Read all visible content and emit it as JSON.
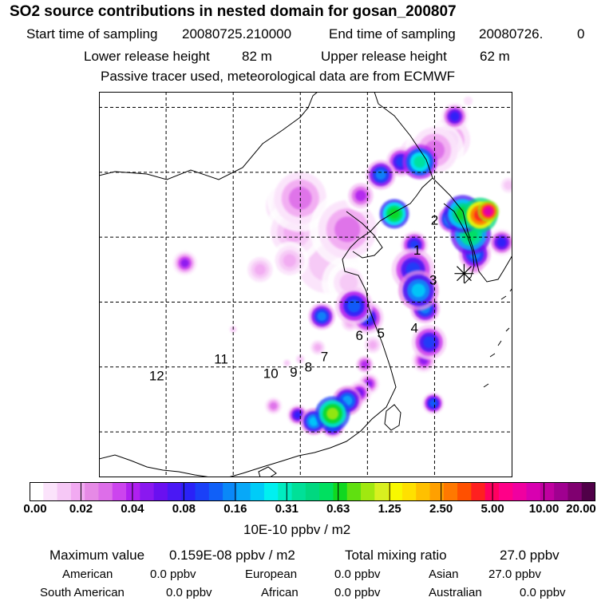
{
  "chart_data": {
    "type": "heatmap",
    "title": "SO2 source contributions in nested domain for gosan_200807",
    "sampling": {
      "start_label": "Start time of sampling",
      "start_value": "20080725.210000",
      "end_label": "End time of sampling",
      "end_value": "20080726.",
      "end_suffix": "0"
    },
    "release": {
      "lower_label": "Lower release height",
      "lower_value": "82 m",
      "upper_label": "Upper release height",
      "upper_value": "62 m"
    },
    "note": "Passive tracer used, meteorological data are from ECMWF",
    "colorbar": {
      "ticks": [
        "0.00",
        "0.02",
        "0.04",
        "0.08",
        "0.16",
        "0.31",
        "0.63",
        "1.25",
        "2.50",
        "5.00",
        "10.00",
        "20.00"
      ],
      "colors": [
        "#ffffff",
        "#fbe3fb",
        "#f6c8f6",
        "#f2aaf2",
        "#e68ae6",
        "#dd6ee9",
        "#cc44ee",
        "#b020f0",
        "#8a18f0",
        "#6a10f0",
        "#4a18f4",
        "#2a22f8",
        "#1a40f8",
        "#1060f8",
        "#0a88f8",
        "#08a8f8",
        "#00ccf8",
        "#00f0f0",
        "#00ecc0",
        "#00e098",
        "#00d880",
        "#00e060",
        "#10d820",
        "#60e010",
        "#a0e810",
        "#d8f020",
        "#f8f800",
        "#ffe000",
        "#ffc000",
        "#ffa000",
        "#ff7800",
        "#ff5000",
        "#ff2020",
        "#ff0060",
        "#ff0088",
        "#f000a0",
        "#d800b0",
        "#c000a0",
        "#a00090",
        "#800070",
        "#500048"
      ],
      "unit": "10E-10 ppbv / m2"
    },
    "point_labels": [
      "1",
      "2",
      "3",
      "4",
      "5",
      "6",
      "7",
      "8",
      "9",
      "10",
      "11",
      "12"
    ],
    "sources": [
      {
        "label": "1",
        "x": 126.7,
        "y": 36.0
      },
      {
        "label": "2",
        "x": 128.0,
        "y": 38.3
      },
      {
        "label": "3",
        "x": 127.9,
        "y": 33.7
      },
      {
        "label": "4",
        "x": 126.5,
        "y": 30.0
      },
      {
        "label": "5",
        "x": 124.0,
        "y": 29.6
      },
      {
        "label": "6",
        "x": 122.4,
        "y": 29.4
      },
      {
        "label": "7",
        "x": 119.8,
        "y": 27.8
      },
      {
        "label": "8",
        "x": 118.6,
        "y": 27.0
      },
      {
        "label": "9",
        "x": 117.5,
        "y": 26.6
      },
      {
        "label": "10",
        "x": 115.8,
        "y": 26.5
      },
      {
        "label": "11",
        "x": 112.1,
        "y": 27.6
      },
      {
        "label": "12",
        "x": 107.3,
        "y": 26.3
      }
    ],
    "receptor": {
      "x": 130.2,
      "y": 34.2
    },
    "plumes": [
      {
        "x": 129.5,
        "y": 46.3,
        "v": 0.08,
        "r": 1.0
      },
      {
        "x": 129.1,
        "y": 44.5,
        "v": 0.03,
        "r": 2.0
      },
      {
        "x": 128.0,
        "y": 43.7,
        "v": 0.03,
        "r": 2.2
      },
      {
        "x": 126.9,
        "y": 42.8,
        "v": 0.35,
        "r": 1.3
      },
      {
        "x": 125.5,
        "y": 42.8,
        "v": 0.1,
        "r": 1.1
      },
      {
        "x": 124.0,
        "y": 41.8,
        "v": 0.15,
        "r": 1.1
      },
      {
        "x": 126.5,
        "y": 43.5,
        "v": 0.02,
        "r": 1.4
      },
      {
        "x": 122.5,
        "y": 40.2,
        "v": 0.04,
        "r": 1.2
      },
      {
        "x": 118.0,
        "y": 40.0,
        "v": 0.03,
        "r": 2.5
      },
      {
        "x": 117.0,
        "y": 39.4,
        "v": 0.02,
        "r": 2.0
      },
      {
        "x": 125.0,
        "y": 38.8,
        "v": 0.7,
        "r": 1.1
      },
      {
        "x": 121.5,
        "y": 37.6,
        "v": 0.03,
        "r": 2.8
      },
      {
        "x": 117.5,
        "y": 37.4,
        "v": 0.02,
        "r": 2.2
      },
      {
        "x": 120.0,
        "y": 35.0,
        "v": 0.015,
        "r": 4.0
      },
      {
        "x": 121.6,
        "y": 33.5,
        "v": 0.015,
        "r": 2.0
      },
      {
        "x": 117.2,
        "y": 35.2,
        "v": 0.02,
        "r": 1.4
      },
      {
        "x": 115.0,
        "y": 34.5,
        "v": 0.02,
        "r": 1.2
      },
      {
        "x": 109.4,
        "y": 35.0,
        "v": 0.05,
        "r": 0.9
      },
      {
        "x": 119.6,
        "y": 30.9,
        "v": 0.14,
        "r": 1.0
      },
      {
        "x": 122.0,
        "y": 31.7,
        "v": 0.12,
        "r": 1.4
      },
      {
        "x": 123.0,
        "y": 30.8,
        "v": 0.1,
        "r": 1.2
      },
      {
        "x": 123.4,
        "y": 28.7,
        "v": 0.02,
        "r": 0.8
      },
      {
        "x": 121.7,
        "y": 30.4,
        "v": 0.02,
        "r": 0.8
      },
      {
        "x": 119.3,
        "y": 28.5,
        "v": 0.02,
        "r": 0.7
      },
      {
        "x": 118.0,
        "y": 27.6,
        "v": 0.015,
        "r": 0.6
      },
      {
        "x": 117.0,
        "y": 27.3,
        "v": 0.015,
        "r": 0.5
      },
      {
        "x": 113.0,
        "y": 29.9,
        "v": 0.015,
        "r": 0.5
      },
      {
        "x": 122.8,
        "y": 27.2,
        "v": 0.04,
        "r": 0.8
      },
      {
        "x": 123.1,
        "y": 25.7,
        "v": 0.05,
        "r": 0.8
      },
      {
        "x": 122.4,
        "y": 25.0,
        "v": 0.06,
        "r": 0.9
      },
      {
        "x": 121.5,
        "y": 24.4,
        "v": 0.18,
        "r": 1.1
      },
      {
        "x": 120.4,
        "y": 23.4,
        "v": 0.9,
        "r": 1.3
      },
      {
        "x": 119.0,
        "y": 22.8,
        "v": 0.2,
        "r": 1.0
      },
      {
        "x": 120.4,
        "y": 22.5,
        "v": 0.15,
        "r": 0.9
      },
      {
        "x": 117.8,
        "y": 23.3,
        "v": 0.08,
        "r": 0.8
      },
      {
        "x": 116.0,
        "y": 24.0,
        "v": 0.03,
        "r": 0.8
      },
      {
        "x": 126.5,
        "y": 36.4,
        "v": 0.1,
        "r": 1.0
      },
      {
        "x": 126.4,
        "y": 34.5,
        "v": 0.1,
        "r": 1.6
      },
      {
        "x": 126.8,
        "y": 32.9,
        "v": 0.2,
        "r": 1.5
      },
      {
        "x": 127.3,
        "y": 31.5,
        "v": 0.15,
        "r": 1.1
      },
      {
        "x": 127.6,
        "y": 28.9,
        "v": 0.1,
        "r": 1.3
      },
      {
        "x": 127.2,
        "y": 27.5,
        "v": 0.05,
        "r": 0.9
      },
      {
        "x": 127.9,
        "y": 24.2,
        "v": 0.12,
        "r": 0.8
      },
      {
        "x": 130.1,
        "y": 38.8,
        "v": 0.6,
        "r": 1.4
      },
      {
        "x": 131.4,
        "y": 38.7,
        "v": 4.0,
        "r": 1.3
      },
      {
        "x": 132.0,
        "y": 39.0,
        "v": 8.0,
        "r": 0.8
      },
      {
        "x": 130.7,
        "y": 37.2,
        "v": 0.5,
        "r": 1.5
      },
      {
        "x": 129.3,
        "y": 38.4,
        "v": 0.3,
        "r": 1.0
      },
      {
        "x": 131.0,
        "y": 35.7,
        "v": 0.15,
        "r": 1.2
      },
      {
        "x": 133.0,
        "y": 36.6,
        "v": 0.08,
        "r": 1.0
      },
      {
        "x": 131.0,
        "y": 34.9,
        "v": 0.04,
        "r": 0.9
      },
      {
        "x": 133.5,
        "y": 41.0,
        "v": 0.015,
        "r": 1.0
      },
      {
        "x": 130.5,
        "y": 47.5,
        "v": 0.01,
        "r": 0.6
      },
      {
        "x": 130.0,
        "y": 45.5,
        "v": 0.01,
        "r": 0.8
      }
    ],
    "xlim": [
      103,
      133.8
    ],
    "ylim": [
      18.5,
      48.2
    ],
    "gridlines_x": [
      108,
      113,
      118,
      123,
      128
    ],
    "gridlines_y": [
      22,
      27,
      32,
      37,
      42,
      47
    ],
    "grid": true
  },
  "stats": {
    "max_label": "Maximum value",
    "max_value": "0.159E-08 ppbv / m2",
    "total_label": "Total mixing ratio",
    "total_value": "27.0 ppbv",
    "contributions": [
      {
        "name": "American",
        "value": "0.0 ppbv"
      },
      {
        "name": "European",
        "value": "0.0 ppbv"
      },
      {
        "name": "Asian",
        "value": "27.0 ppbv"
      },
      {
        "name": "South American",
        "value": "0.0 ppbv"
      },
      {
        "name": "African",
        "value": "0.0 ppbv"
      },
      {
        "name": "Australian",
        "value": "0.0 ppbv"
      }
    ]
  }
}
